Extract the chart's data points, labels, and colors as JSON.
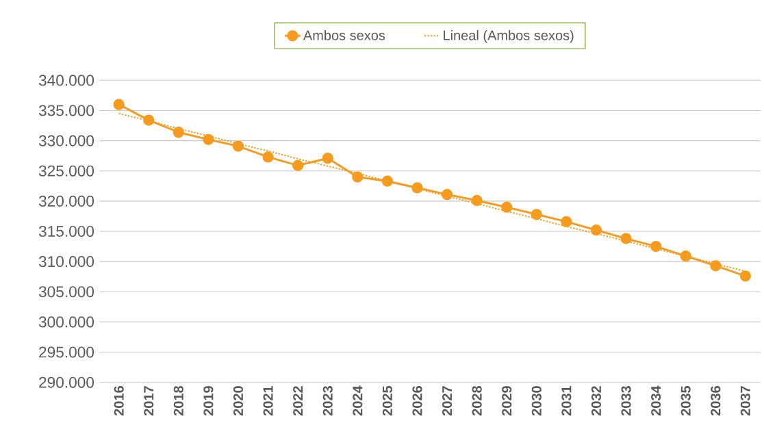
{
  "chart_data": {
    "type": "line",
    "categories": [
      "2016",
      "2017",
      "2018",
      "2019",
      "2020",
      "2021",
      "2022",
      "2023",
      "2024",
      "2025",
      "2026",
      "2027",
      "2028",
      "2029",
      "2030",
      "2031",
      "2032",
      "2033",
      "2034",
      "2035",
      "2036",
      "2037"
    ],
    "series": [
      {
        "name": "Ambos sexos",
        "color": "#f79b1e",
        "marker": "circle",
        "line_style": "solid",
        "values": [
          336000,
          333400,
          331400,
          330200,
          329100,
          327300,
          325900,
          327100,
          324000,
          323300,
          322200,
          321100,
          320100,
          319000,
          317800,
          316600,
          315200,
          313800,
          312500,
          310900,
          309300,
          307600
        ]
      },
      {
        "name": "Lineal (Ambos sexos)",
        "type": "line",
        "color": "#f79b1e",
        "marker": "none",
        "line_style": "dotted",
        "values": [
          334500,
          333300,
          332000,
          330800,
          329500,
          328300,
          327000,
          325800,
          324600,
          323300,
          322100,
          320800,
          319600,
          318300,
          317100,
          315800,
          314600,
          313400,
          312100,
          310900,
          309600,
          308400
        ]
      }
    ],
    "ylim": [
      290000,
      340000
    ],
    "yticks": [
      {
        "value": 290000,
        "label": "290.000"
      },
      {
        "value": 295000,
        "label": "295.000"
      },
      {
        "value": 300000,
        "label": "300.000"
      },
      {
        "value": 305000,
        "label": "305.000"
      },
      {
        "value": 310000,
        "label": "310.000"
      },
      {
        "value": 315000,
        "label": "315.000"
      },
      {
        "value": 320000,
        "label": "320.000"
      },
      {
        "value": 325000,
        "label": "325.000"
      },
      {
        "value": 330000,
        "label": "330.000"
      },
      {
        "value": 335000,
        "label": "335.000"
      },
      {
        "value": 340000,
        "label": "340.000"
      }
    ],
    "grid": "y",
    "legend": "top"
  }
}
